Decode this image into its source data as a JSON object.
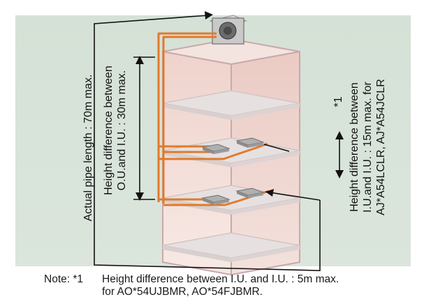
{
  "labels": {
    "pipe_length": "Actual pipe length : 70m max.",
    "ou_iu_line1": "Height difference between",
    "ou_iu_line2": "O.U.and I.U. : 30m max.",
    "iu_iu_star": "*1",
    "iu_iu_line1": "Height difference between",
    "iu_iu_line2": "I.U.and I.U. : 15m max. for",
    "iu_iu_line3": "AJ*A54LCLR, AJ*A54JCLR"
  },
  "note": {
    "prefix": "Note: *1",
    "line1": "Height difference between I.U. and I.U. : 5m max.",
    "line2": "for AO*54UJBMR, AO*54FJBMR."
  },
  "colors": {
    "panel": "#d7e2d8",
    "pipe": "#e07a2c",
    "building_outline": "#c9a9a9",
    "building_fill_top": "#f0d8d2",
    "building_fill_bottom": "#f6e7e3",
    "floor_slab": "#e3dedd",
    "floor_edge": "#d6c9c8",
    "unit": "#9a9a9a",
    "line": "#111111"
  }
}
